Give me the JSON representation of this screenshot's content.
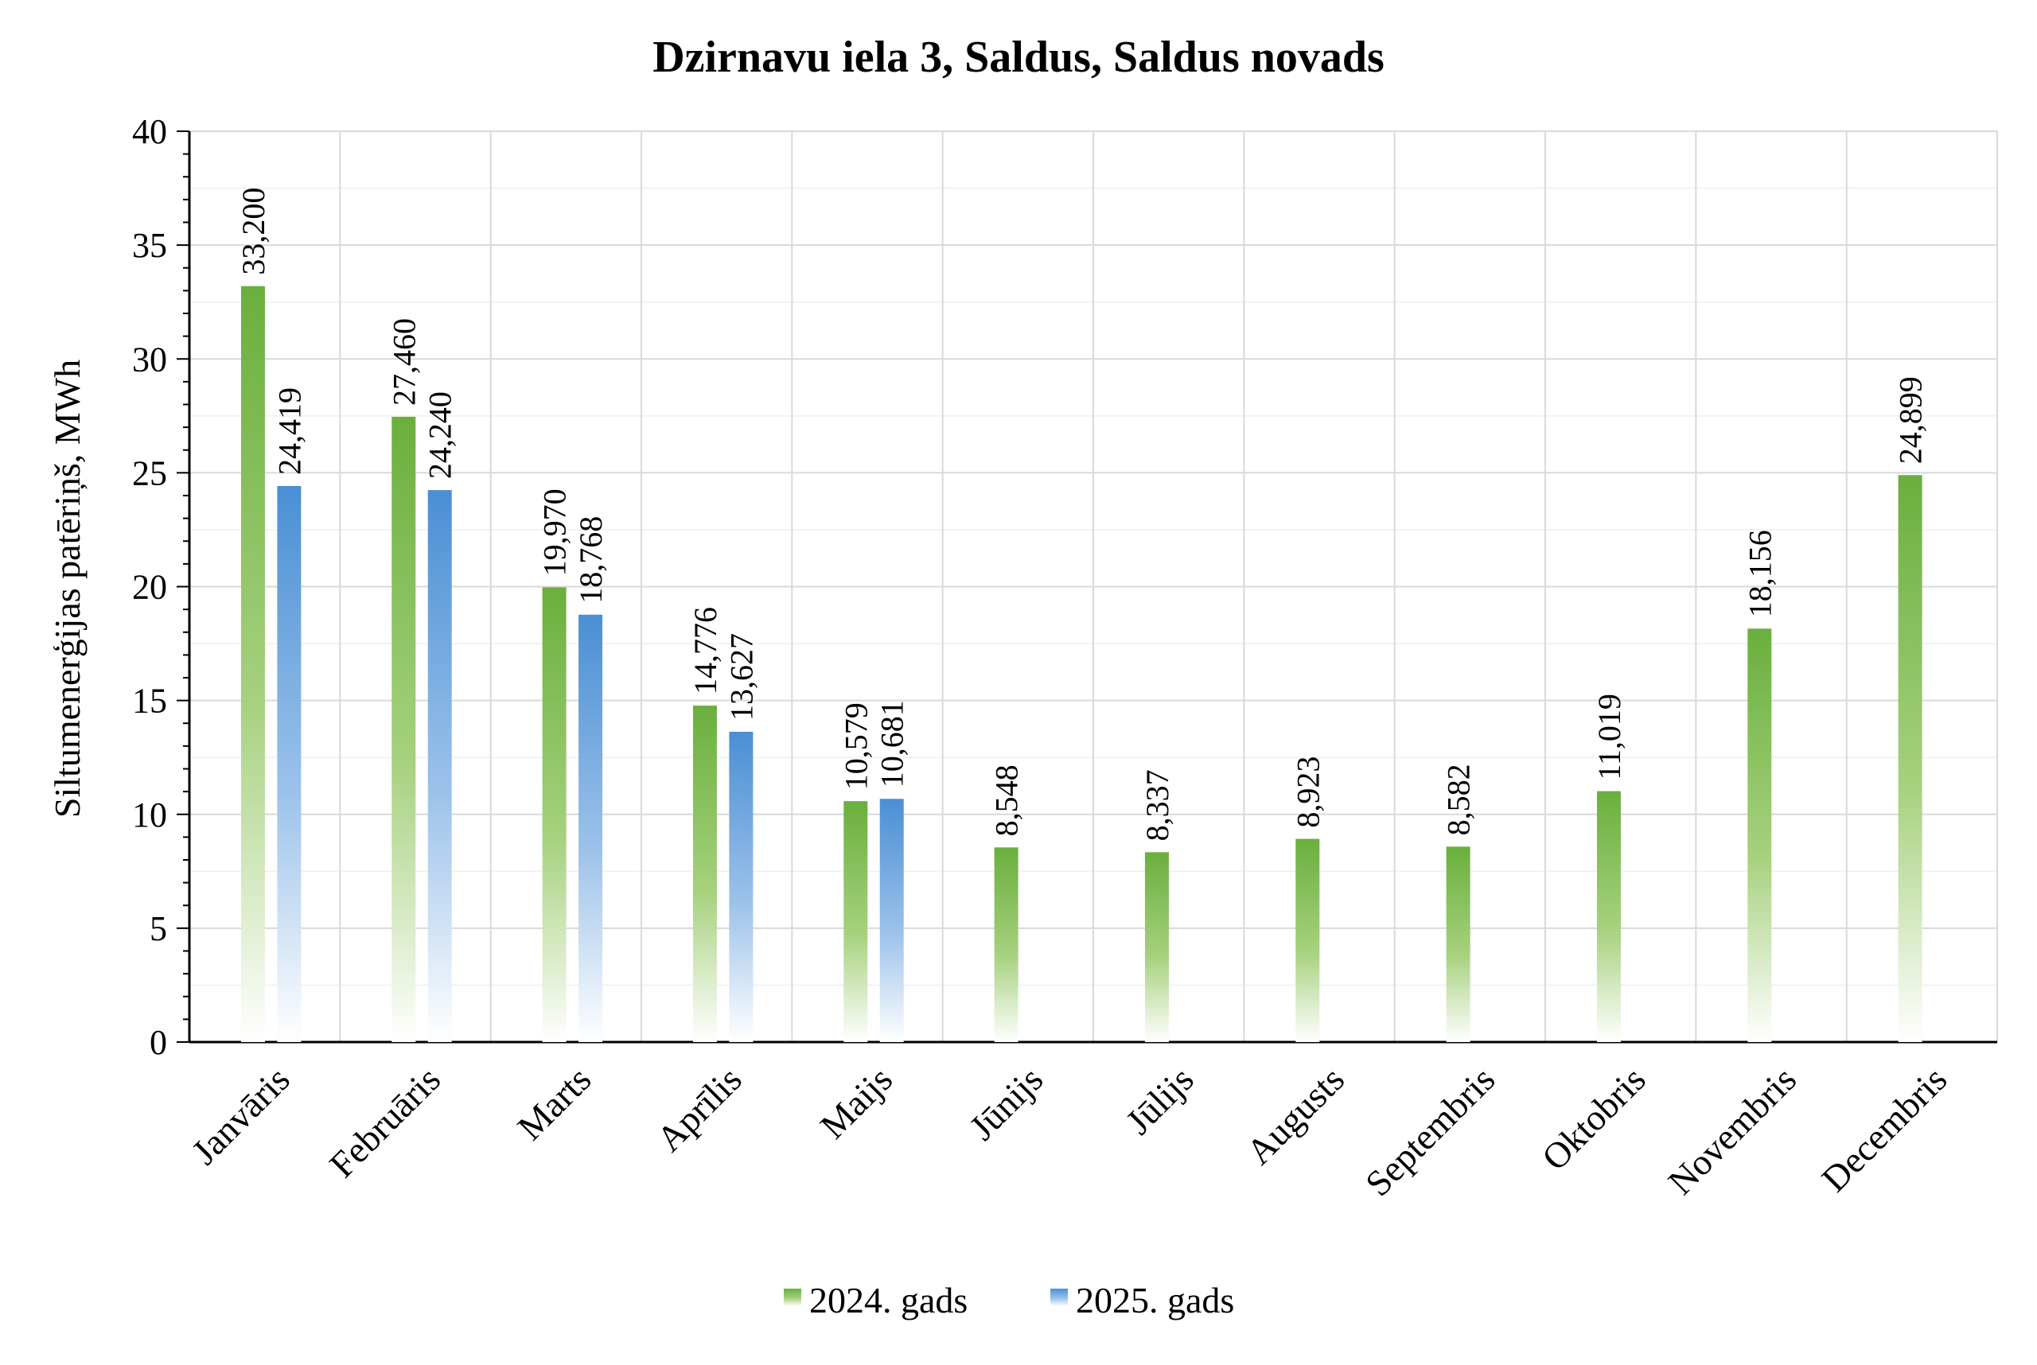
{
  "chart_data": {
    "type": "bar",
    "title": "Dzirnavu iela 3, Saldus, Saldus novads",
    "xlabel": "",
    "ylabel": "Siltumenerģijas patēriņš, MWh",
    "ylim": [
      0,
      40
    ],
    "yticks": [
      "0",
      "5",
      "10",
      "15",
      "20",
      "25",
      "30",
      "35",
      "40"
    ],
    "grid": true,
    "legend_position": "bottom",
    "categories": [
      "Janvāris",
      "Februāris",
      "Marts",
      "Aprīlis",
      "Maijs",
      "Jūnijs",
      "Jūlijs",
      "Augusts",
      "Septembris",
      "Oktobris",
      "Novembris",
      "Decembris"
    ],
    "series": [
      {
        "name": "2024. gads",
        "color": "#6aaf3d",
        "values": [
          33.2,
          27.46,
          19.97,
          14.776,
          10.579,
          8.548,
          8.337,
          8.923,
          8.582,
          11.019,
          18.156,
          24.899
        ],
        "labels": [
          "33,200",
          "27,460",
          "19,970",
          "14,776",
          "10,579",
          "8,548",
          "8,337",
          "8,923",
          "8,582",
          "11,019",
          "18,156",
          "24,899"
        ]
      },
      {
        "name": "2025. gads",
        "color": "#4a8fd4",
        "values": [
          24.419,
          24.24,
          18.768,
          13.627,
          10.681,
          null,
          null,
          null,
          null,
          null,
          null,
          null
        ],
        "labels": [
          "24,419",
          "24,240",
          "18,768",
          "13,627",
          "10,681",
          null,
          null,
          null,
          null,
          null,
          null,
          null
        ]
      }
    ]
  }
}
